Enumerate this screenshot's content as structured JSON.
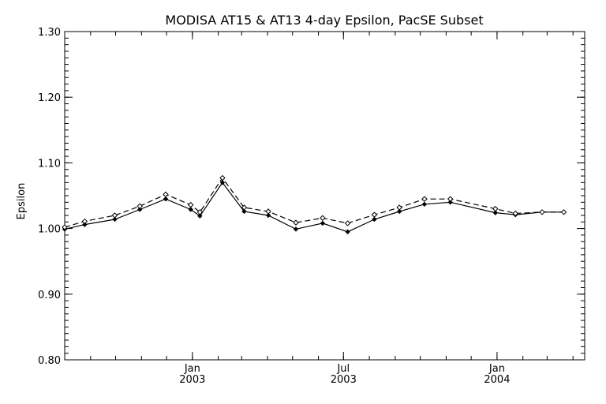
{
  "chart_data": {
    "type": "line",
    "title": "MODISA AT15 & AT13 4-day Epsilon, PacSE Subset",
    "ylabel": "Epsilon",
    "xlabel": "",
    "ylim": [
      0.8,
      1.3
    ],
    "xlim": [
      "2002-08-01",
      "2004-04-15"
    ],
    "grid": false,
    "legend": "none",
    "yticks": [
      "0.80",
      "0.90",
      "1.00",
      "1.10",
      "1.20",
      "1.30"
    ],
    "xticks": [
      {
        "date": "2003-01-01",
        "line1": "Jan",
        "line2": "2003"
      },
      {
        "date": "2003-07-01",
        "line1": "Jul",
        "line2": "2003"
      },
      {
        "date": "2004-01-01",
        "line1": "Jan",
        "line2": "2004"
      }
    ],
    "x": [
      "2002-08-01",
      "2002-08-25",
      "2002-09-30",
      "2002-10-30",
      "2002-11-30",
      "2002-12-30",
      "2003-01-10",
      "2003-02-06",
      "2003-03-04",
      "2003-04-02",
      "2003-05-05",
      "2003-06-06",
      "2003-07-06",
      "2003-08-07",
      "2003-09-06",
      "2003-10-06",
      "2003-11-06",
      "2003-12-30",
      "2004-01-23",
      "2004-02-24",
      "2004-03-21"
    ],
    "series": [
      {
        "style": "solid",
        "values": [
          0.999,
          1.006,
          1.014,
          1.029,
          1.045,
          1.029,
          1.019,
          1.07,
          1.026,
          1.02,
          0.999,
          1.008,
          0.995,
          1.014,
          1.026,
          1.037,
          1.04,
          1.024,
          1.021,
          1.025,
          1.025
        ]
      },
      {
        "style": "dashed",
        "values": [
          1.002,
          1.011,
          1.02,
          1.034,
          1.052,
          1.036,
          1.025,
          1.077,
          1.032,
          1.026,
          1.009,
          1.016,
          1.008,
          1.021,
          1.032,
          1.045,
          1.045,
          1.03,
          1.023,
          1.025,
          1.025
        ]
      }
    ]
  }
}
